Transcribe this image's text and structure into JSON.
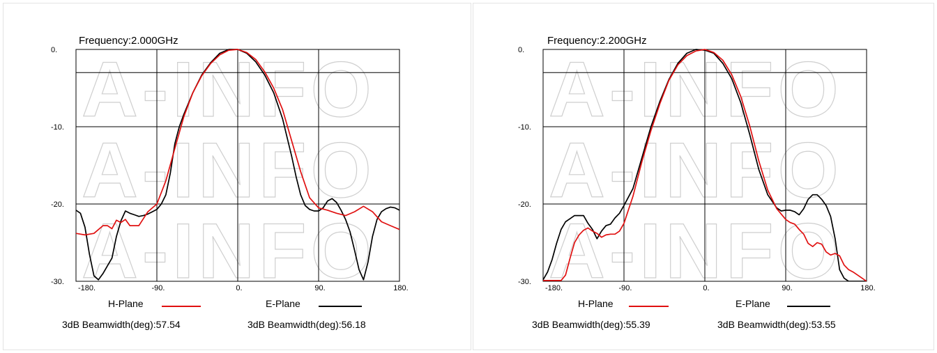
{
  "watermark": "A-INFO",
  "colors": {
    "h_plane": "#e01010",
    "e_plane": "#000000",
    "grid": "#000000"
  },
  "chart_data": [
    {
      "type": "line",
      "title": "Frequency:2.000GHz",
      "x_tick_labels": [
        "-180.",
        "-90.",
        "0.",
        "90.",
        "180."
      ],
      "y_tick_labels": [
        "0.",
        "-10.",
        "-20.",
        "-30."
      ],
      "x_ticks": [
        -180,
        -90,
        0,
        90,
        180
      ],
      "y_ticks": [
        0,
        -10,
        -20,
        -30
      ],
      "xlim": [
        -180,
        180
      ],
      "ylim": [
        -30,
        0
      ],
      "grid": true,
      "series": [
        {
          "name": "H-Plane",
          "color": "#e01010",
          "beamwidth_label": "3dB Beamwidth(deg):57.54",
          "x": [
            -180,
            -170,
            -160,
            -150,
            -145,
            -140,
            -135,
            -130,
            -125,
            -120,
            -115,
            -110,
            -100,
            -90,
            -80,
            -70,
            -60,
            -50,
            -40,
            -30,
            -20,
            -10,
            0,
            10,
            20,
            30,
            40,
            50,
            60,
            70,
            80,
            90,
            100,
            110,
            120,
            130,
            140,
            150,
            160,
            170,
            180
          ],
          "y": [
            -23.8,
            -24.0,
            -23.8,
            -22.8,
            -22.8,
            -23.2,
            -22.1,
            -22.4,
            -22.0,
            -22.8,
            -22.8,
            -22.8,
            -21.0,
            -20.0,
            -17.0,
            -12.8,
            -8.7,
            -5.6,
            -3.4,
            -1.8,
            -0.7,
            -0.1,
            0.0,
            -0.4,
            -1.3,
            -2.9,
            -5.0,
            -7.8,
            -11.8,
            -15.8,
            -19.2,
            -20.5,
            -20.8,
            -21.2,
            -21.5,
            -21.0,
            -20.3,
            -21.0,
            -22.3,
            -22.8,
            -23.3
          ]
        },
        {
          "name": "E-Plane",
          "color": "#000000",
          "beamwidth_label": "3dB Beamwidth(deg):56.18",
          "x": [
            -180,
            -175,
            -170,
            -165,
            -160,
            -155,
            -150,
            -145,
            -140,
            -135,
            -130,
            -125,
            -120,
            -115,
            -110,
            -105,
            -100,
            -95,
            -90,
            -85,
            -80,
            -75,
            -70,
            -65,
            -60,
            -50,
            -40,
            -30,
            -20,
            -10,
            0,
            10,
            20,
            30,
            40,
            50,
            60,
            65,
            70,
            75,
            80,
            85,
            90,
            95,
            100,
            105,
            110,
            115,
            120,
            125,
            130,
            135,
            140,
            145,
            150,
            155,
            160,
            165,
            170,
            175,
            180
          ],
          "y": [
            -20.8,
            -21.2,
            -23.0,
            -26.5,
            -29.3,
            -29.8,
            -29.0,
            -28.0,
            -27.0,
            -24.2,
            -22.2,
            -20.9,
            -21.2,
            -21.4,
            -21.6,
            -21.5,
            -21.3,
            -21.0,
            -20.7,
            -20.0,
            -18.8,
            -16.0,
            -12.2,
            -10.0,
            -8.4,
            -5.6,
            -3.3,
            -1.7,
            -0.5,
            0.0,
            0.0,
            -0.5,
            -1.6,
            -3.3,
            -5.6,
            -9.0,
            -13.8,
            -16.5,
            -18.8,
            -20.2,
            -20.7,
            -20.9,
            -20.9,
            -20.5,
            -19.6,
            -19.3,
            -19.8,
            -20.8,
            -22.0,
            -23.6,
            -26.0,
            -28.5,
            -29.8,
            -27.5,
            -24.2,
            -22.0,
            -21.0,
            -20.6,
            -20.4,
            -20.5,
            -20.8
          ]
        }
      ]
    },
    {
      "type": "line",
      "title": "Frequency:2.200GHz",
      "x_tick_labels": [
        "-180.",
        "-90.",
        "0.",
        "90.",
        "180."
      ],
      "y_tick_labels": [
        "0.",
        "-10.",
        "-20.",
        "-30."
      ],
      "x_ticks": [
        -180,
        -90,
        0,
        90,
        180
      ],
      "y_ticks": [
        0,
        -10,
        -20,
        -30
      ],
      "xlim": [
        -180,
        180
      ],
      "ylim": [
        -30,
        0
      ],
      "grid": true,
      "series": [
        {
          "name": "H-Plane",
          "color": "#e01010",
          "beamwidth_label": "3dB Beamwidth(deg):55.39",
          "x": [
            -180,
            -175,
            -170,
            -165,
            -160,
            -155,
            -150,
            -145,
            -140,
            -135,
            -130,
            -125,
            -120,
            -115,
            -110,
            -105,
            -100,
            -95,
            -90,
            -80,
            -70,
            -60,
            -50,
            -40,
            -30,
            -20,
            -10,
            0,
            10,
            20,
            30,
            40,
            50,
            60,
            70,
            80,
            90,
            95,
            100,
            105,
            110,
            115,
            120,
            125,
            130,
            135,
            140,
            145,
            150,
            155,
            160,
            165,
            170,
            175,
            180
          ],
          "y": [
            -29.9,
            -29.9,
            -29.9,
            -29.9,
            -29.9,
            -29.2,
            -27.0,
            -25.0,
            -24.0,
            -23.4,
            -23.1,
            -23.5,
            -23.8,
            -24.3,
            -24.0,
            -23.9,
            -23.9,
            -23.5,
            -22.5,
            -19.0,
            -14.5,
            -10.5,
            -7.0,
            -4.0,
            -2.0,
            -0.8,
            -0.2,
            0.0,
            -0.4,
            -1.4,
            -3.3,
            -6.1,
            -9.9,
            -14.4,
            -18.2,
            -20.6,
            -22.0,
            -22.4,
            -22.6,
            -23.3,
            -23.9,
            -25.1,
            -25.5,
            -25.0,
            -25.2,
            -26.2,
            -26.6,
            -26.4,
            -26.7,
            -27.9,
            -28.5,
            -28.8,
            -29.2,
            -29.6,
            -30.0
          ]
        },
        {
          "name": "E-Plane",
          "color": "#000000",
          "beamwidth_label": "3dB Beamwidth(deg):53.55",
          "x": [
            -180,
            -175,
            -170,
            -165,
            -160,
            -155,
            -150,
            -145,
            -140,
            -135,
            -130,
            -125,
            -120,
            -115,
            -110,
            -105,
            -100,
            -95,
            -90,
            -80,
            -70,
            -60,
            -50,
            -40,
            -30,
            -20,
            -10,
            0,
            10,
            20,
            30,
            40,
            50,
            60,
            70,
            80,
            85,
            90,
            95,
            100,
            105,
            110,
            115,
            120,
            125,
            130,
            135,
            140,
            145,
            150,
            155,
            160,
            165,
            170,
            175,
            180
          ],
          "y": [
            -29.8,
            -28.8,
            -27.2,
            -25.1,
            -23.3,
            -22.3,
            -21.9,
            -21.5,
            -21.5,
            -21.5,
            -22.5,
            -23.3,
            -24.5,
            -23.5,
            -22.8,
            -22.6,
            -21.8,
            -21.2,
            -20.2,
            -18.0,
            -14.0,
            -10.0,
            -6.7,
            -3.9,
            -1.8,
            -0.5,
            0.0,
            -0.1,
            -0.5,
            -1.8,
            -3.8,
            -6.9,
            -11.0,
            -15.5,
            -18.8,
            -20.5,
            -20.9,
            -20.8,
            -20.8,
            -21.0,
            -21.4,
            -20.6,
            -19.4,
            -18.8,
            -18.8,
            -19.4,
            -20.2,
            -21.6,
            -24.5,
            -28.5,
            -29.6,
            -30.0,
            -30.0,
            -30.0,
            -30.0,
            -30.0
          ]
        }
      ]
    }
  ]
}
